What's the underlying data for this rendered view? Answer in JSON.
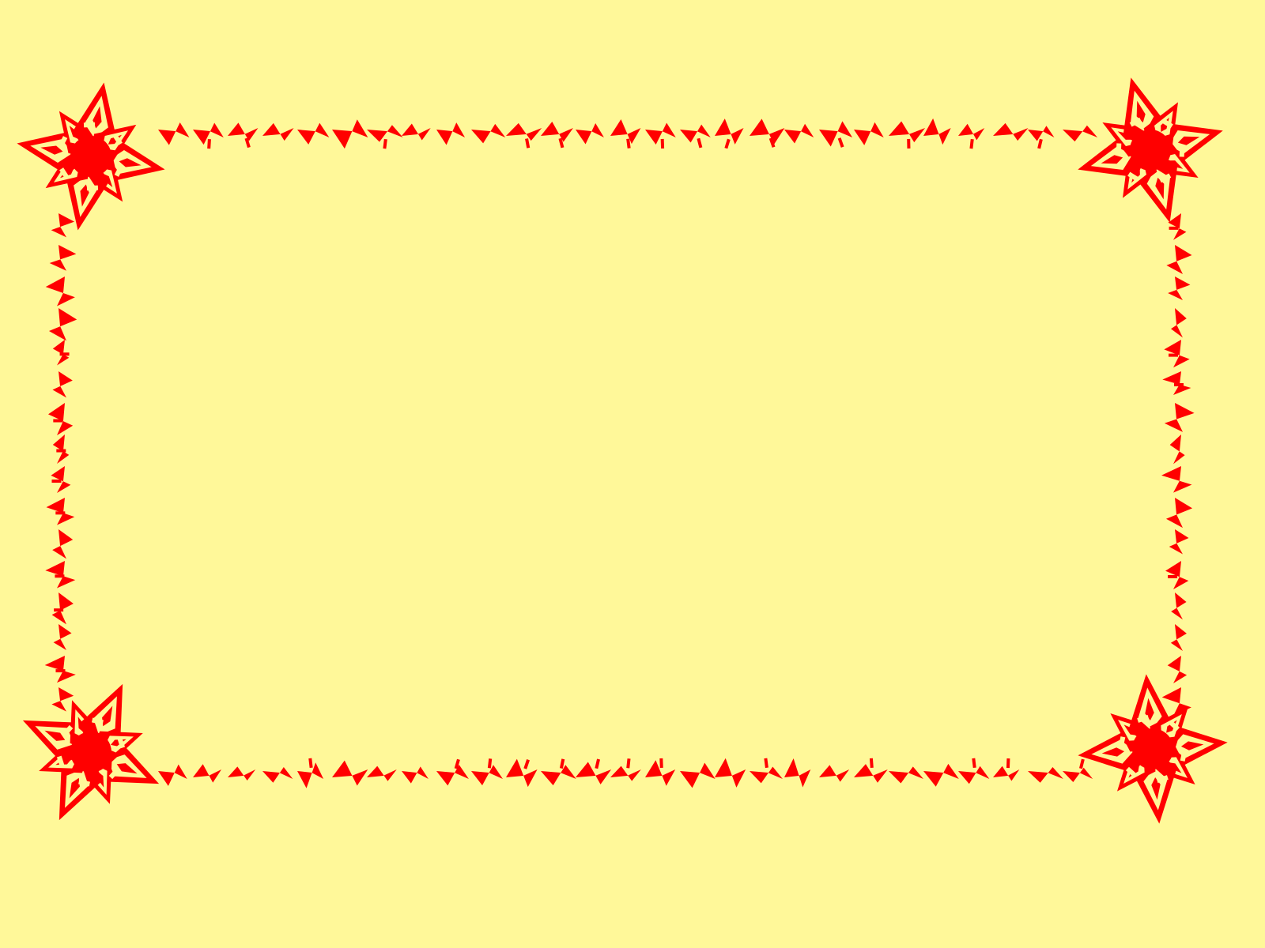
{
  "slide": {
    "background_color": "#fff899",
    "content_area": "empty"
  },
  "frame": {
    "style": "chinese-paper-cut-border",
    "color": "#ff0000",
    "corner_ornaments": [
      "flower-ornament-top-left",
      "flower-ornament-top-right",
      "flower-ornament-bottom-left",
      "flower-ornament-bottom-right"
    ],
    "edges": [
      "zigzag-border-top",
      "zigzag-border-bottom",
      "zigzag-border-left",
      "zigzag-border-right"
    ]
  }
}
